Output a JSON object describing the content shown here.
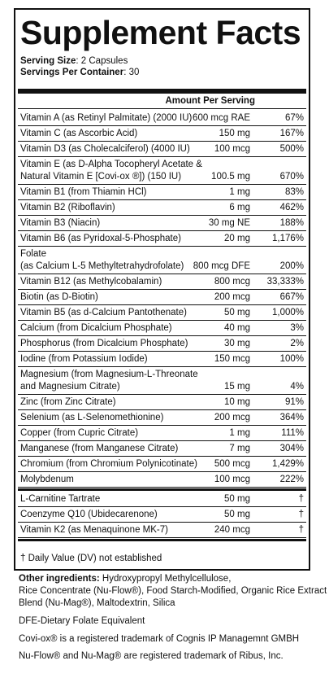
{
  "title": "Supplement Facts",
  "serving_size": {
    "label": "Serving Size",
    "value": "2 Capsules"
  },
  "servings_per_container": {
    "label": "Servings Per Container",
    "value": "30"
  },
  "amount_per_serving_header": "Amount Per Serving",
  "nutrients": [
    {
      "name": [
        "Vitamin A (as Retinyl Palmitate) (2000 IU)"
      ],
      "amount": "600 mcg RAE",
      "dv": "67%"
    },
    {
      "name": [
        "Vitamin C (as Ascorbic Acid)"
      ],
      "amount": "150 mg",
      "dv": "167%"
    },
    {
      "name": [
        "Vitamin D3 (as Cholecalciferol) (4000 IU)"
      ],
      "amount": "100 mcg",
      "dv": "500%"
    },
    {
      "name": [
        "Vitamin E (as D-Alpha Tocopheryl Acetate &",
        "Natural Vitamin E [Covi-ox ®]) (150 IU)"
      ],
      "amount": "100.5 mg",
      "dv": "670%"
    },
    {
      "name": [
        "Vitamin B1 (from Thiamin HCl)"
      ],
      "amount": "1 mg",
      "dv": "83%"
    },
    {
      "name": [
        "Vitamin B2 (Riboflavin)"
      ],
      "amount": "6 mg",
      "dv": "462%"
    },
    {
      "name": [
        "Vitamin B3 (Niacin)"
      ],
      "amount": "30 mg NE",
      "dv": "188%"
    },
    {
      "name": [
        "Vitamin B6 (as  Pyridoxal-5-Phosphate)"
      ],
      "amount": "20 mg",
      "dv": "1,176%"
    },
    {
      "name": [
        "Folate",
        "(as Calcium L-5 Methyltetrahydrofolate)"
      ],
      "amount": "800 mcg DFE",
      "dv": "200%"
    },
    {
      "name": [
        "Vitamin B12 (as Methylcobalamin)"
      ],
      "amount": "800 mcg",
      "dv": "33,333%"
    },
    {
      "name": [
        "Biotin (as D-Biotin)"
      ],
      "amount": "200 mcg",
      "dv": "667%"
    },
    {
      "name": [
        "Vitamin B5 (as d-Calcium Pantothenate)"
      ],
      "amount": "50 mg",
      "dv": "1,000%"
    },
    {
      "name": [
        "Calcium (from Dicalcium Phosphate)"
      ],
      "amount": "40 mg",
      "dv": "3%"
    },
    {
      "name": [
        "Phosphorus (from Dicalcium Phosphate)"
      ],
      "amount": "30 mg",
      "dv": "2%"
    },
    {
      "name": [
        "Iodine (from Potassium Iodide)"
      ],
      "amount": "150 mcg",
      "dv": "100%"
    },
    {
      "name": [
        "Magnesium (from Magnesium-L-Threonate",
        "and Magnesium Citrate)"
      ],
      "amount": "15 mg",
      "dv": "4%"
    },
    {
      "name": [
        "Zinc (from Zinc Citrate)"
      ],
      "amount": "10  mg",
      "dv": "91%"
    },
    {
      "name": [
        "Selenium (as L-Selenomethionine)"
      ],
      "amount": "200 mcg",
      "dv": "364%"
    },
    {
      "name": [
        "Copper (from Cupric Citrate)"
      ],
      "amount": "1 mg",
      "dv": "111%"
    },
    {
      "name": [
        "Manganese (from Manganese Citrate)"
      ],
      "amount": "7 mg",
      "dv": "304%"
    },
    {
      "name": [
        "Chromium (from Chromium Polynicotinate)"
      ],
      "amount": "500 mcg",
      "dv": "1,429%"
    },
    {
      "name": [
        "Molybdenum"
      ],
      "amount": "100 mcg",
      "dv": "222%"
    }
  ],
  "other_nutrients": [
    {
      "name": [
        "L-Carnitine Tartrate"
      ],
      "amount": "50 mg",
      "dv": "†"
    },
    {
      "name": [
        "Coenzyme Q10 (Ubidecarenone)"
      ],
      "amount": "50 mg",
      "dv": "†"
    },
    {
      "name": [
        "Vitamin K2 (as Menaquinone MK-7)"
      ],
      "amount": "240 mcg",
      "dv": "†"
    }
  ],
  "footnote": "† Daily Value (DV) not established",
  "other_ingredients": {
    "label": "Other ingredients:",
    "lines": [
      " Hydroxypropyl Methylcellulose,",
      "Rice Concentrate (Nu-Flow®), Food Starch-Modified, Organic Rice Extract",
      "Blend (Nu-Mag®), Maltodextrin, Silica"
    ]
  },
  "notes": [
    "DFE-Dietary Folate Equivalent",
    "Covi-ox® is a registered trademark of Cognis IP Managemnt GMBH",
    "Nu-Flow® and Nu-Mag® are registered trademark of Ribus, Inc."
  ]
}
